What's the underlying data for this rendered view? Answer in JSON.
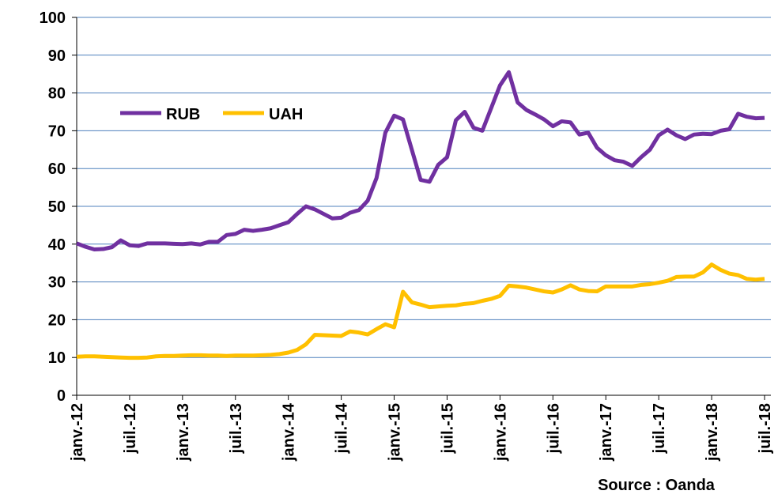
{
  "chart_data": {
    "type": "line",
    "categories": [
      "janv.-12",
      null,
      null,
      null,
      null,
      null,
      "juil.-12",
      null,
      null,
      null,
      null,
      null,
      "janv.-13",
      null,
      null,
      null,
      null,
      null,
      "juil.-13",
      null,
      null,
      null,
      null,
      null,
      "janv.-14",
      null,
      null,
      null,
      null,
      null,
      "juil.-14",
      null,
      null,
      null,
      null,
      null,
      "janv.-15",
      null,
      null,
      null,
      null,
      null,
      "juil.-15",
      null,
      null,
      null,
      null,
      null,
      "janv.-16",
      null,
      null,
      null,
      null,
      null,
      "juil.-16",
      null,
      null,
      null,
      null,
      null,
      "janv.-17",
      null,
      null,
      null,
      null,
      null,
      "juil.-17",
      null,
      null,
      null,
      null,
      null,
      "janv.-18",
      null,
      null,
      null,
      null,
      null,
      "juil.-18"
    ],
    "series": [
      {
        "name": "RUB",
        "color": "#7030a0",
        "values": [
          40.2,
          39.3,
          38.6,
          38.7,
          39.2,
          41.0,
          39.7,
          39.5,
          40.2,
          40.2,
          40.2,
          40.1,
          40.0,
          40.2,
          39.9,
          40.6,
          40.6,
          42.4,
          42.7,
          43.8,
          43.5,
          43.8,
          44.2,
          45.0,
          45.8,
          48.0,
          50.0,
          49.2,
          48.0,
          46.8,
          47.0,
          48.3,
          49.0,
          51.5,
          57.5,
          69.5,
          74.0,
          73.0,
          65.0,
          57.0,
          56.5,
          61.0,
          63.0,
          72.8,
          75.0,
          70.8,
          70.0,
          76.0,
          82.0,
          85.5,
          77.5,
          75.5,
          74.3,
          73.0,
          71.2,
          72.5,
          72.2,
          69.0,
          69.5,
          65.5,
          63.5,
          62.2,
          61.8,
          60.7,
          63.0,
          65.0,
          68.8,
          70.3,
          68.8,
          67.8,
          69.0,
          69.2,
          69.1,
          70.0,
          70.4,
          74.5,
          73.7,
          73.3,
          73.4
        ]
      },
      {
        "name": "UAH",
        "color": "#ffc000",
        "values": [
          10.2,
          10.3,
          10.3,
          10.2,
          10.1,
          10.0,
          9.9,
          9.9,
          10.0,
          10.3,
          10.4,
          10.4,
          10.5,
          10.6,
          10.6,
          10.5,
          10.5,
          10.4,
          10.5,
          10.5,
          10.5,
          10.6,
          10.7,
          10.9,
          11.3,
          12.0,
          13.5,
          16.0,
          15.9,
          15.8,
          15.7,
          16.9,
          16.6,
          16.1,
          17.5,
          18.8,
          18.0,
          27.4,
          24.6,
          24.0,
          23.3,
          23.5,
          23.7,
          23.8,
          24.2,
          24.4,
          25.0,
          25.5,
          26.3,
          29.0,
          28.8,
          28.5,
          28.0,
          27.5,
          27.2,
          28.0,
          29.1,
          28.0,
          27.6,
          27.5,
          28.8,
          28.8,
          28.8,
          28.8,
          29.2,
          29.4,
          29.8,
          30.3,
          31.3,
          31.4,
          31.4,
          32.5,
          34.6,
          33.2,
          32.2,
          31.8,
          30.8,
          30.6,
          30.8
        ]
      }
    ],
    "ylim": [
      0,
      100
    ],
    "yticks": [
      0,
      10,
      20,
      30,
      40,
      50,
      60,
      70,
      80,
      90,
      100
    ],
    "grid": true,
    "source": "Source : Oanda"
  }
}
